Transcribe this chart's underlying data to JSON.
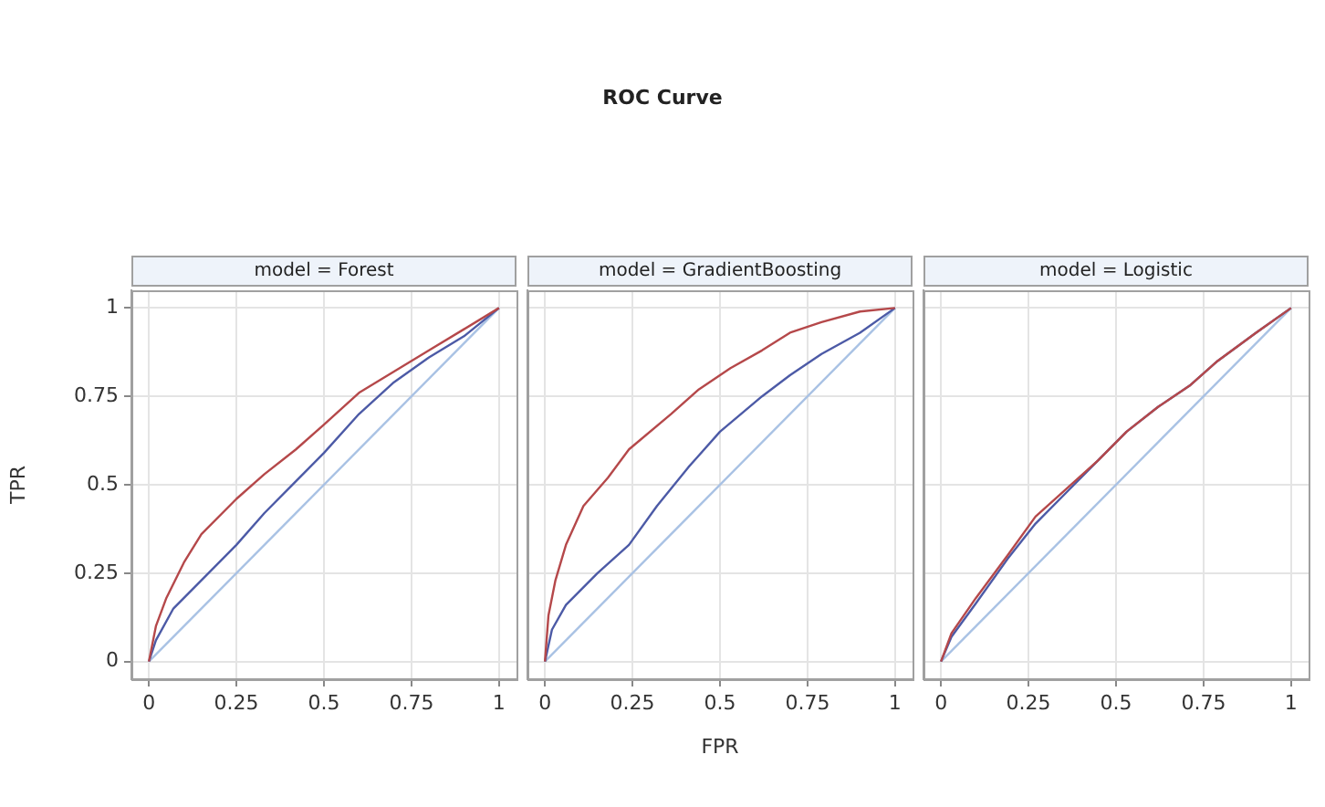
{
  "chart_data": [
    {
      "type": "line",
      "subtitle": "model = Forest",
      "ylabel": "TPR",
      "xlim": [
        -0.05,
        1.05
      ],
      "ylim": [
        -0.05,
        1.05
      ],
      "xticks": [
        0,
        0.25,
        0.5,
        0.75,
        1
      ],
      "yticks": [
        0,
        0.25,
        0.5,
        0.75,
        1
      ],
      "grid": true,
      "marker": "none",
      "series": [
        {
          "color": "#b5484a",
          "x": [
            0,
            0.02,
            0.05,
            0.1,
            0.15,
            0.25,
            0.33,
            0.42,
            0.5,
            0.6,
            0.7,
            0.8,
            0.9,
            1
          ],
          "values": [
            0,
            0.1,
            0.18,
            0.28,
            0.36,
            0.46,
            0.53,
            0.6,
            0.67,
            0.76,
            0.82,
            0.88,
            0.94,
            1
          ]
        },
        {
          "color": "#4c5aa6",
          "x": [
            0,
            0.02,
            0.07,
            0.15,
            0.25,
            0.33,
            0.42,
            0.5,
            0.6,
            0.7,
            0.8,
            0.9,
            1
          ],
          "values": [
            0,
            0.06,
            0.15,
            0.23,
            0.33,
            0.42,
            0.51,
            0.59,
            0.7,
            0.79,
            0.86,
            0.92,
            1
          ]
        },
        {
          "color": "#a9c2e4",
          "x": [
            0,
            1
          ],
          "values": [
            0,
            1
          ]
        }
      ]
    },
    {
      "type": "line",
      "title": "ROC Curve",
      "subtitle": "model = GradientBoosting",
      "xlabel": "FPR",
      "xlim": [
        -0.05,
        1.05
      ],
      "ylim": [
        -0.05,
        1.05
      ],
      "xticks": [
        0,
        0.25,
        0.5,
        0.75,
        1
      ],
      "yticks": [
        0,
        0.25,
        0.5,
        0.75,
        1
      ],
      "grid": true,
      "tick_labels": "x",
      "marker": "none",
      "series": [
        {
          "color": "#b5484a",
          "x": [
            0,
            0.01,
            0.03,
            0.06,
            0.11,
            0.18,
            0.24,
            0.36,
            0.44,
            0.53,
            0.62,
            0.7,
            0.79,
            0.9,
            1
          ],
          "values": [
            0,
            0.13,
            0.23,
            0.33,
            0.44,
            0.52,
            0.6,
            0.7,
            0.77,
            0.83,
            0.88,
            0.93,
            0.96,
            0.99,
            1
          ]
        },
        {
          "color": "#4c5aa6",
          "x": [
            0,
            0.02,
            0.06,
            0.15,
            0.24,
            0.32,
            0.41,
            0.5,
            0.62,
            0.7,
            0.79,
            0.9,
            1
          ],
          "values": [
            0,
            0.09,
            0.16,
            0.25,
            0.33,
            0.44,
            0.55,
            0.65,
            0.75,
            0.81,
            0.87,
            0.93,
            1
          ]
        },
        {
          "color": "#a9c2e4",
          "x": [
            0,
            1
          ],
          "values": [
            0,
            1
          ]
        }
      ]
    },
    {
      "type": "line",
      "subtitle": "model = Logistic",
      "xlim": [
        -0.05,
        1.05
      ],
      "ylim": [
        -0.05,
        1.05
      ],
      "xticks": [
        0,
        0.25,
        0.5,
        0.75,
        1
      ],
      "yticks": [
        0,
        0.25,
        0.5,
        0.75,
        1
      ],
      "grid": true,
      "tick_labels": "x",
      "marker": "none",
      "series": [
        {
          "color": "#b5484a",
          "x": [
            0,
            0.03,
            0.1,
            0.19,
            0.27,
            0.36,
            0.45,
            0.53,
            0.62,
            0.71,
            0.79,
            0.9,
            1
          ],
          "values": [
            0,
            0.08,
            0.18,
            0.3,
            0.41,
            0.49,
            0.57,
            0.65,
            0.72,
            0.78,
            0.85,
            0.93,
            1
          ]
        },
        {
          "color": "#4c5aa6",
          "x": [
            0,
            0.03,
            0.1,
            0.19,
            0.27,
            0.36,
            0.45,
            0.53,
            0.62,
            0.71,
            0.79,
            0.9,
            1
          ],
          "values": [
            0,
            0.07,
            0.165,
            0.29,
            0.39,
            0.48,
            0.57,
            0.65,
            0.72,
            0.78,
            0.85,
            0.93,
            1
          ]
        },
        {
          "color": "#a9c2e4",
          "x": [
            0,
            1
          ],
          "values": [
            0,
            1
          ]
        }
      ]
    }
  ]
}
